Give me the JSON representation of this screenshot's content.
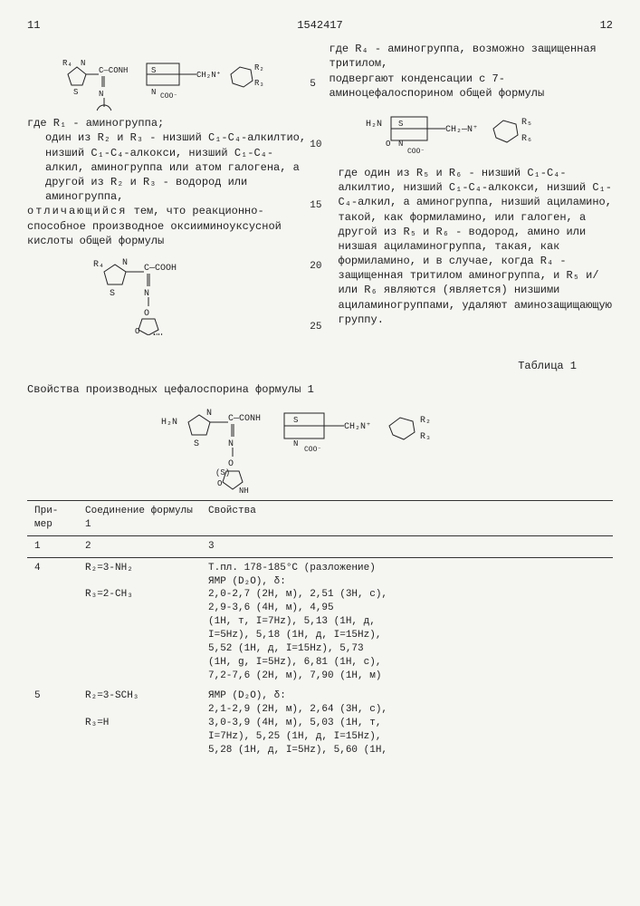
{
  "header": {
    "left_page": "11",
    "patent_no": "1542417",
    "right_page": "12"
  },
  "left_col": {
    "formula1_alt": "R₄-thiazole-C(=N-O-pyrrolidinone)-CONH-cephem-CH₂-N⁺(pyridine-R₂R₃) COO⁻",
    "text1": "где R₁ - аминогруппа;",
    "text2": "один из R₂ и R₃ - низший C₁-C₄-алкилтио, низший C₁-C₄-алкокси, низший C₁-C₄-алкил, аминогруппа или атом галогена, а другой из R₂ и R₃ - водород или аминогруппа,",
    "text3_spaced": "отличающийся",
    "text3_rest": " тем, что реакционно-способное производное оксииминоуксусной кислоты общей формулы",
    "formula2_alt": "R₄-thiazole-C(=N-O-pyrrolidinone)-COOH",
    "line_markers": [
      "5",
      "10",
      "15",
      "20",
      "25"
    ]
  },
  "right_col": {
    "text1": "где R₄ - аминогруппа, возможно защищенная тритилом,",
    "text2": "подвергают конденсации с 7-аминоцефалоспорином общей формулы",
    "formula3_alt": "H₂N-cephem-CH₂-N⁺(pyridine-R₅R₆) COO⁻",
    "text3": "где один из R₅ и R₆ - низший C₁-C₄-алкилтио, низший C₁-C₄-алкокси, низший C₁-C₄-алкил, а аминогруппа, низший ациламино, такой, как формиламино, или галоген, а другой из R₅ и R₆ - водород, амино или низшая ациламиногруппа, такая, как формиламино, и в случае, когда R₄ - защищенная тритилом аминогруппа, и R₅ и/или R₆ являются (является) низшими ациламиногруппами, удаляют аминозащищающую группу."
  },
  "table": {
    "title": "Таблица 1",
    "caption": "Свойства производных цефалоспорина формулы 1",
    "formula_alt": "H₂N-thiazole-C(=N-O-(S)-pyrrolidinone)-CONH-cephem-CH₂-N⁺(pyridine-R₂R₃) COO⁻",
    "headers": {
      "col1": "При-мер",
      "col2": "Соединение формулы 1",
      "col3": "Свойства"
    },
    "subheaders": {
      "col1": "1",
      "col2": "2",
      "col3": "3"
    },
    "rows": [
      {
        "num": "4",
        "compound": "R₂=3-NH₂\n\nR₃=2-CH₃",
        "props": "Т.пл. 178-185°С (разложение)\nЯМР (D₂O), δ:\n2,0-2,7 (2H, м), 2,51 (3H, с),\n2,9-3,6 (4H, м), 4,95\n(1H, т, I=7Hz), 5,13 (1H, д,\nI=5Hz), 5,18 (1H, д, I=15Hz),\n5,52 (1H, д, I=15Hz), 5,73\n(1H, g, I=5Hz), 6,81 (1H, с),\n7,2-7,6 (2H, м), 7,90 (1H, м)"
      },
      {
        "num": "5",
        "compound": "R₂=3-SCH₃\n\nR₃=H",
        "props": "ЯМР  (D₂O), δ:\n2,1-2,9 (2H, м), 2,64 (3H, с),\n3,0-3,9 (4H, м), 5,03 (1H, т,\nI=7Hz), 5,25 (1H, д, I=15Hz),\n5,28 (1H, д, I=5Hz), 5,60 (1H,"
      }
    ]
  }
}
